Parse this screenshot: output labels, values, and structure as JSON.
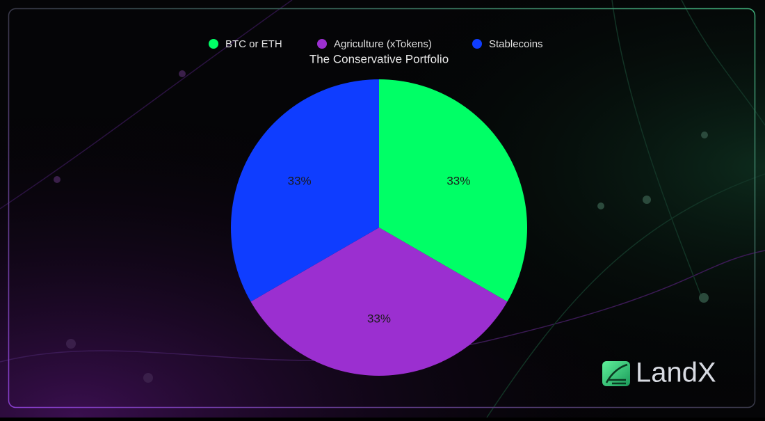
{
  "chart_data": {
    "type": "pie",
    "title": "The Conservative Portfolio",
    "categories": [
      "BTC or ETH",
      "Agriculture (xTokens)",
      "Stablecoins"
    ],
    "values": [
      33,
      33,
      33
    ],
    "value_labels": [
      "33%",
      "33%",
      "33%"
    ],
    "colors": [
      "#00ff66",
      "#9b2fd0",
      "#0f3dff"
    ],
    "legend_position": "top"
  },
  "brand": "LandX"
}
